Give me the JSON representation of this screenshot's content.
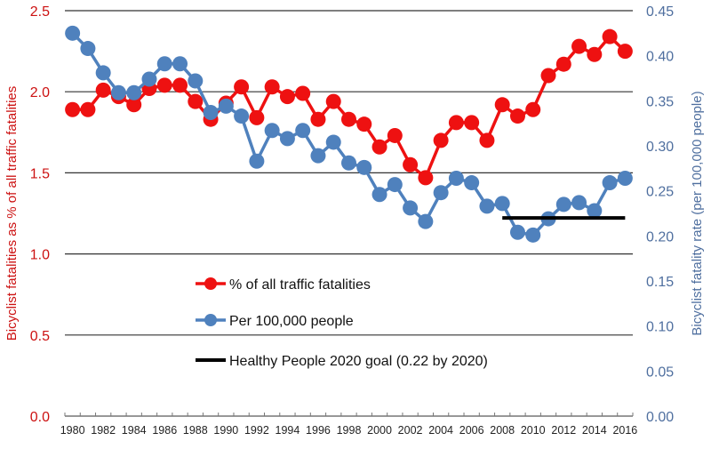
{
  "chart_data": {
    "type": "line",
    "title": "",
    "x": [
      1980,
      1981,
      1982,
      1983,
      1984,
      1985,
      1986,
      1987,
      1988,
      1989,
      1990,
      1991,
      1992,
      1993,
      1994,
      1995,
      1996,
      1997,
      1998,
      1999,
      2000,
      2001,
      2002,
      2003,
      2004,
      2005,
      2006,
      2007,
      2008,
      2009,
      2010,
      2011,
      2012,
      2013,
      2014,
      2015,
      2016
    ],
    "x_tick_labels": [
      "1980",
      "1982",
      "1984",
      "1986",
      "1988",
      "1990",
      "1992",
      "1994",
      "1996",
      "1998",
      "2000",
      "2002",
      "2004",
      "2006",
      "2008",
      "2010",
      "2012",
      "2014",
      "2016"
    ],
    "ylabel_left": "Bicyclist fatalities as % of all traffic fatalities",
    "ylabel_right": "Bicyclist fatality rate (per 100,000 people)",
    "ylim_left": [
      0,
      2.5
    ],
    "ylim_right": [
      0,
      0.45
    ],
    "y_left_ticks": [
      "0.0",
      "0.5",
      "1.0",
      "1.5",
      "2.0",
      "2.5"
    ],
    "y_right_ticks": [
      "0.00",
      "0.05",
      "0.10",
      "0.15",
      "0.20",
      "0.25",
      "0.30",
      "0.35",
      "0.40",
      "0.45"
    ],
    "grid": true,
    "legend_placement": "center-left",
    "series": [
      {
        "name": "% of all traffic fatalities",
        "axis": "left",
        "color": "#ee1111",
        "values": [
          1.89,
          1.89,
          2.01,
          1.97,
          1.92,
          2.02,
          2.04,
          2.04,
          1.94,
          1.83,
          1.93,
          2.03,
          1.84,
          2.03,
          1.97,
          1.99,
          1.83,
          1.94,
          1.83,
          1.8,
          1.66,
          1.73,
          1.55,
          1.47,
          1.7,
          1.81,
          1.81,
          1.7,
          1.92,
          1.85,
          1.89,
          2.1,
          2.17,
          2.28,
          2.23,
          2.34,
          2.25
        ]
      },
      {
        "name": "Per 100,000 people",
        "axis": "right",
        "color": "#4f81bd",
        "values": [
          0.425,
          0.408,
          0.381,
          0.359,
          0.359,
          0.374,
          0.391,
          0.391,
          0.372,
          0.337,
          0.344,
          0.333,
          0.283,
          0.317,
          0.308,
          0.317,
          0.289,
          0.304,
          0.281,
          0.276,
          0.246,
          0.257,
          0.231,
          0.216,
          0.248,
          0.264,
          0.259,
          0.233,
          0.236,
          0.204,
          0.201,
          0.219,
          0.235,
          0.237,
          0.228,
          0.259,
          0.264
        ]
      },
      {
        "name": "Healthy People 2020 goal (0.22 by 2020)",
        "axis": "right",
        "color": "#000000",
        "x_range": [
          2008,
          2016
        ],
        "value": 0.22
      }
    ],
    "left_axis_color": "#cc1111",
    "right_axis_color": "#4f6f9f"
  }
}
